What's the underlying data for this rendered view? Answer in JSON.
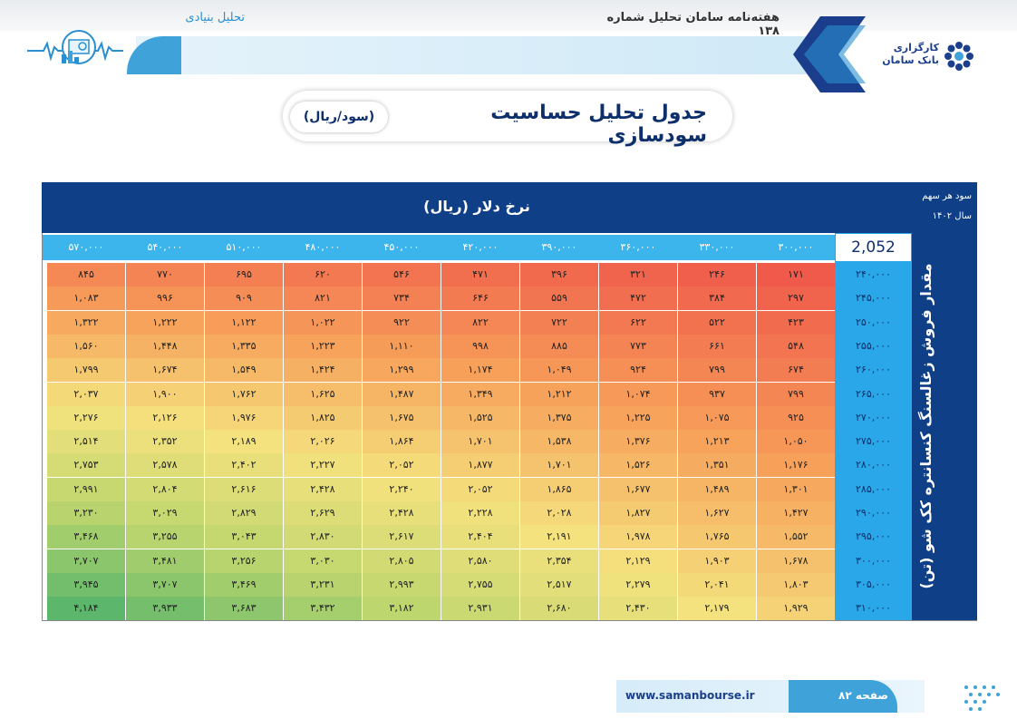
{
  "header": {
    "publication_title": "هفته‌نامه سامان تحلیل شماره ۱۳۸",
    "section_label": "تحلیل بنیادی",
    "brand_lines": [
      "کارگزاری",
      "بانک سامان"
    ]
  },
  "page_title": {
    "main": "جدول تحلیل حساسیت سودسازی",
    "unit_pill": "(سود/ریال)"
  },
  "table": {
    "header_title": "نرخ دلار (ریال)",
    "corner_line1": "سود هر سهم",
    "corner_line2": "سال ۱۴۰۲",
    "row_axis_title": "مقدار فروش زغالسنگ کنسانتره کک شو (تن)",
    "base_value": "2,052",
    "col_headers": [
      "۳۰۰,۰۰۰",
      "۳۳۰,۰۰۰",
      "۳۶۰,۰۰۰",
      "۳۹۰,۰۰۰",
      "۴۲۰,۰۰۰",
      "۴۵۰,۰۰۰",
      "۴۸۰,۰۰۰",
      "۵۱۰,۰۰۰",
      "۵۴۰,۰۰۰",
      "۵۷۰,۰۰۰"
    ],
    "rows": [
      {
        "head": "۲۴۰,۰۰۰",
        "cells": [
          "۱۷۱",
          "۲۴۶",
          "۳۲۱",
          "۳۹۶",
          "۴۷۱",
          "۵۴۶",
          "۶۲۰",
          "۶۹۵",
          "۷۷۰",
          "۸۴۵"
        ]
      },
      {
        "head": "۲۴۵,۰۰۰",
        "cells": [
          "۲۹۷",
          "۳۸۴",
          "۴۷۲",
          "۵۵۹",
          "۶۴۶",
          "۷۳۴",
          "۸۲۱",
          "۹۰۹",
          "۹۹۶",
          "۱,۰۸۳"
        ]
      },
      {
        "head": "۲۵۰,۰۰۰",
        "cells": [
          "۴۲۳",
          "۵۲۲",
          "۶۲۲",
          "۷۲۲",
          "۸۲۲",
          "۹۲۲",
          "۱,۰۲۲",
          "۱,۱۲۲",
          "۱,۲۲۲",
          "۱,۳۲۲"
        ]
      },
      {
        "head": "۲۵۵,۰۰۰",
        "cells": [
          "۵۴۸",
          "۶۶۱",
          "۷۷۳",
          "۸۸۵",
          "۹۹۸",
          "۱,۱۱۰",
          "۱,۲۲۳",
          "۱,۳۳۵",
          "۱,۴۴۸",
          "۱,۵۶۰"
        ]
      },
      {
        "head": "۲۶۰,۰۰۰",
        "cells": [
          "۶۷۴",
          "۷۹۹",
          "۹۲۴",
          "۱,۰۴۹",
          "۱,۱۷۴",
          "۱,۲۹۹",
          "۱,۴۲۴",
          "۱,۵۴۹",
          "۱,۶۷۴",
          "۱,۷۹۹"
        ]
      },
      {
        "head": "۲۶۵,۰۰۰",
        "cells": [
          "۷۹۹",
          "۹۳۷",
          "۱,۰۷۴",
          "۱,۲۱۲",
          "۱,۳۴۹",
          "۱,۴۸۷",
          "۱,۶۲۵",
          "۱,۷۶۲",
          "۱,۹۰۰",
          "۲,۰۳۷"
        ]
      },
      {
        "head": "۲۷۰,۰۰۰",
        "cells": [
          "۹۲۵",
          "۱,۰۷۵",
          "۱,۲۲۵",
          "۱,۳۷۵",
          "۱,۵۲۵",
          "۱,۶۷۵",
          "۱,۸۲۵",
          "۱,۹۷۶",
          "۲,۱۲۶",
          "۲,۲۷۶"
        ]
      },
      {
        "head": "۲۷۵,۰۰۰",
        "cells": [
          "۱,۰۵۰",
          "۱,۲۱۳",
          "۱,۳۷۶",
          "۱,۵۳۸",
          "۱,۷۰۱",
          "۱,۸۶۴",
          "۲,۰۲۶",
          "۲,۱۸۹",
          "۲,۳۵۲",
          "۲,۵۱۴"
        ]
      },
      {
        "head": "۲۸۰,۰۰۰",
        "cells": [
          "۱,۱۷۶",
          "۱,۳۵۱",
          "۱,۵۲۶",
          "۱,۷۰۱",
          "۱,۸۷۷",
          "۲,۰۵۲",
          "۲,۲۲۷",
          "۲,۴۰۲",
          "۲,۵۷۸",
          "۲,۷۵۳"
        ]
      },
      {
        "head": "۲۸۵,۰۰۰",
        "cells": [
          "۱,۳۰۱",
          "۱,۴۸۹",
          "۱,۶۷۷",
          "۱,۸۶۵",
          "۲,۰۵۲",
          "۲,۲۴۰",
          "۲,۴۲۸",
          "۲,۶۱۶",
          "۲,۸۰۴",
          "۲,۹۹۱"
        ]
      },
      {
        "head": "۲۹۰,۰۰۰",
        "cells": [
          "۱,۴۲۷",
          "۱,۶۲۷",
          "۱,۸۲۷",
          "۲,۰۲۸",
          "۲,۲۲۸",
          "۲,۴۲۸",
          "۲,۶۲۹",
          "۲,۸۲۹",
          "۳,۰۲۹",
          "۳,۲۳۰"
        ]
      },
      {
        "head": "۲۹۵,۰۰۰",
        "cells": [
          "۱,۵۵۲",
          "۱,۷۶۵",
          "۱,۹۷۸",
          "۲,۱۹۱",
          "۲,۴۰۴",
          "۲,۶۱۷",
          "۲,۸۳۰",
          "۳,۰۴۳",
          "۳,۲۵۵",
          "۳,۴۶۸"
        ]
      },
      {
        "head": "۳۰۰,۰۰۰",
        "cells": [
          "۱,۶۷۸",
          "۱,۹۰۳",
          "۲,۱۲۹",
          "۲,۳۵۴",
          "۲,۵۸۰",
          "۲,۸۰۵",
          "۳,۰۳۰",
          "۳,۲۵۶",
          "۳,۴۸۱",
          "۳,۷۰۷"
        ]
      },
      {
        "head": "۳۰۵,۰۰۰",
        "cells": [
          "۱,۸۰۳",
          "۲,۰۴۱",
          "۲,۲۷۹",
          "۲,۵۱۷",
          "۲,۷۵۵",
          "۲,۹۹۳",
          "۳,۲۳۱",
          "۳,۴۶۹",
          "۳,۷۰۷",
          "۳,۹۴۵"
        ]
      },
      {
        "head": "۳۱۰,۰۰۰",
        "cells": [
          "۱,۹۲۹",
          "۲,۱۷۹",
          "۲,۴۳۰",
          "۲,۶۸۰",
          "۲,۹۳۱",
          "۳,۱۸۲",
          "۳,۴۳۲",
          "۳,۶۸۳",
          "۳,۹۳۳",
          "۴,۱۸۴"
        ]
      }
    ]
  },
  "footer": {
    "url": "www.samanbourse.ir",
    "page_label": "صفحه ۸۲"
  },
  "colors": {
    "navy": "#0e3f87",
    "sky": "#2aa7e8",
    "heat_low": "#ef5a4b",
    "heat_mid": "#f4e27e",
    "heat_high": "#5cb66b"
  },
  "icons": [
    "analytics-monitor-icon",
    "chevron-logo-icon",
    "saman-flower-logo-icon",
    "dot-pattern-icon"
  ]
}
